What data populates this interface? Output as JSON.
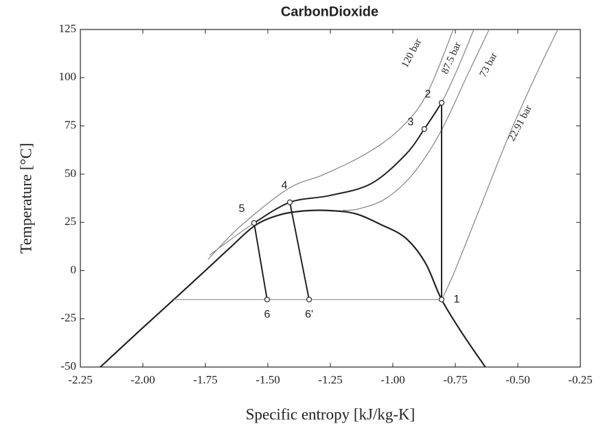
{
  "chart_data": {
    "type": "line",
    "title": "CarbonDioxide",
    "x_label": "Specific entropy [kJ/kg-K]",
    "y_label": "Temperature  [°C]",
    "xlim": [
      -2.25,
      -0.25
    ],
    "xticks": [
      -2.25,
      {
        "value": -2,
        "label": "-2.00"
      },
      -1.75,
      {
        "value": -1.5,
        "label": "-1.50"
      },
      -1.25,
      {
        "value": -1,
        "label": "-1.00"
      },
      -0.75,
      {
        "value": -0.5,
        "label": "-0.50"
      },
      -0.25
    ],
    "ylim": [
      -50,
      125
    ],
    "yticks": [
      -50,
      -25,
      0,
      25,
      50,
      75,
      100,
      125
    ],
    "isobars": [
      {
        "name": "120 bar",
        "color": "#8a8a8a",
        "x": [
          -1.739,
          -1.61,
          -1.418,
          -1.28,
          -1.115,
          -0.978,
          -0.868,
          -0.758
        ],
        "values": [
          5.8,
          23,
          42.5,
          49.6,
          60,
          72.7,
          90.5,
          125
        ]
      },
      {
        "name": "87.5 bar",
        "color": "#8a8a8a",
        "x": [
          -1.734,
          -1.555,
          -1.412,
          -1.253,
          -1.088,
          -0.95,
          -0.874,
          -0.805,
          -0.74,
          -0.676
        ],
        "values": [
          8,
          24.7,
          35.4,
          38.9,
          45,
          60,
          73.4,
          87,
          105,
          125
        ]
      },
      {
        "name": "73 bar",
        "color": "#8a8a8a",
        "x": [
          -1.2,
          -1.143,
          -1.033,
          -0.923,
          -0.813,
          -0.703,
          -0.615
        ],
        "values": [
          31.3,
          31.8,
          37,
          49.6,
          71,
          101,
          125
        ]
      },
      {
        "name": "22.91 bar",
        "color": "#8a8a8a",
        "x": [
          -0.805,
          -0.758,
          -0.648,
          -0.539,
          -0.429,
          -0.34
        ],
        "values": [
          -15,
          -2,
          33.6,
          69,
          101,
          125
        ]
      }
    ],
    "lines": [
      {
        "color": "#222222",
        "x": [
          -2.17,
          -2.0,
          -1.876,
          -1.75,
          -1.65,
          -1.55,
          -1.45,
          -1.35,
          -1.25,
          -1.15,
          -1.05,
          -0.95,
          -0.87,
          -0.805,
          -0.72,
          -0.63
        ],
        "values": [
          -50,
          -29.6,
          -15,
          0,
          12,
          23.5,
          29,
          31,
          31.1,
          29.5,
          24,
          17,
          4,
          -15,
          -33,
          -50
        ]
      },
      {
        "color": "#999999",
        "x": [
          -1.876,
          -0.805
        ],
        "values": [
          -15,
          -15
        ]
      },
      {
        "color": "#222222",
        "x": [
          -0.805,
          -0.805
        ],
        "values": [
          -15,
          87
        ]
      },
      {
        "color": "#222222",
        "x": [
          -0.805,
          -0.874,
          -0.95,
          -1.088,
          -1.253,
          -1.412,
          -1.555
        ],
        "values": [
          87,
          73.4,
          60,
          45,
          38.9,
          35.4,
          24.7
        ]
      },
      {
        "color": "#222222",
        "x": [
          -1.555,
          -1.503
        ],
        "values": [
          24.7,
          -15
        ]
      },
      {
        "color": "#222222",
        "x": [
          -1.412,
          -1.335
        ],
        "values": [
          35.4,
          -15
        ]
      }
    ],
    "points": [
      {
        "label": "1",
        "s": -0.805,
        "T": -15
      },
      {
        "label": "2",
        "s": -0.805,
        "T": 87
      },
      {
        "label": "3",
        "s": -0.874,
        "T": 73.4
      },
      {
        "label": "4",
        "s": -1.412,
        "T": 35.4
      },
      {
        "label": "5",
        "s": -1.555,
        "T": 24.7
      },
      {
        "label": "6",
        "s": -1.503,
        "T": -15
      },
      {
        "label": "6'",
        "s": -1.335,
        "T": -15
      }
    ]
  }
}
